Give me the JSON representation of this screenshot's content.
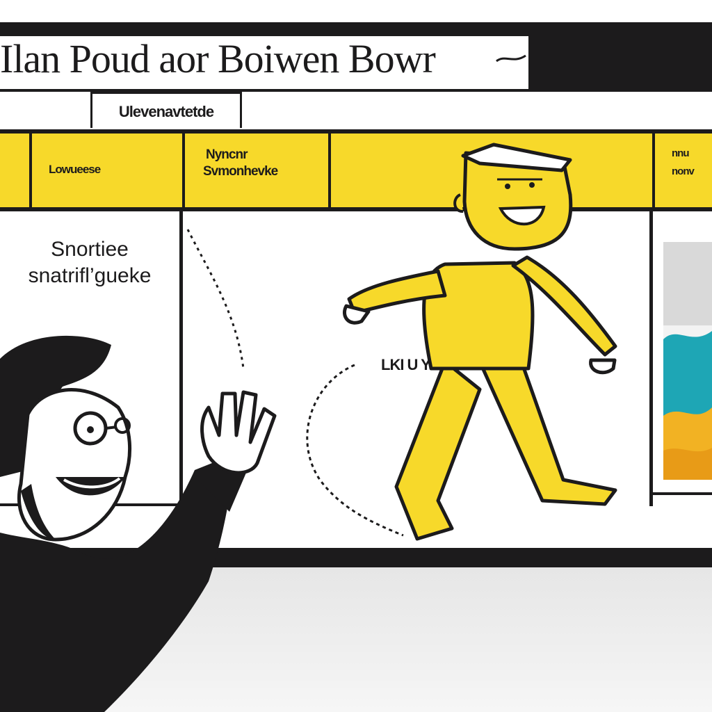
{
  "header": {
    "title": "Ilan Poud aor Boiwen Bowr"
  },
  "tab": {
    "label": "Ulevenavtetde"
  },
  "toolbar": {
    "cell1": "Lowueese",
    "cell2_line1": "Nyncnr",
    "cell2_line2": "Svmonhevke",
    "cell3_line1": "nnu",
    "cell3_line2": "nonv"
  },
  "panel1": {
    "line1": "Snortiee",
    "line2": "snatrifl’gueke"
  },
  "arc": {
    "label": "LKI U YO Tiue"
  },
  "colors": {
    "accent": "#f7d92a",
    "ink": "#1c1b1c",
    "teal": "#1ea6b5",
    "orange": "#f2b223"
  },
  "characters": [
    "smiling-man-waving",
    "yellow-walking-figure"
  ]
}
